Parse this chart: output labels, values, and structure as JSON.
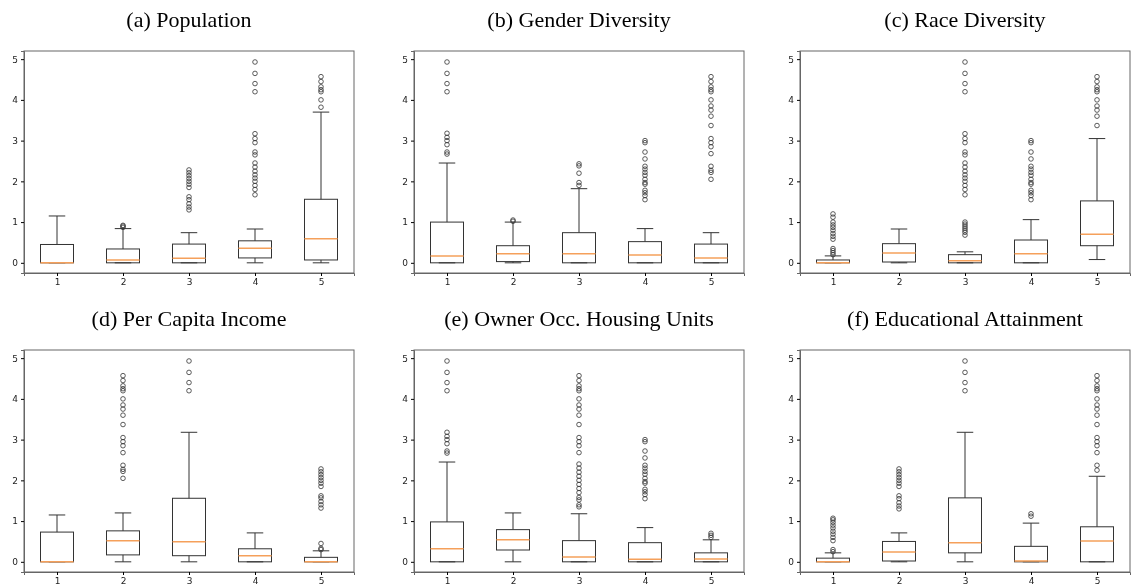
{
  "chart_data": [
    {
      "type": "box",
      "title": "(a) Population",
      "categories": [
        "1",
        "2",
        "3",
        "4",
        "5"
      ],
      "ylim": [
        -0.25,
        5.2
      ],
      "yticks": [
        0,
        1,
        2,
        3,
        4,
        5
      ],
      "boxes": [
        {
          "low": 0,
          "q1": 0,
          "median": 0,
          "q3": 0.45,
          "high": 1.15
        },
        {
          "low": 0,
          "q1": 0,
          "median": 0.07,
          "q3": 0.34,
          "high": 0.84,
          "outliers": [
            0.87,
            0.9,
            0.92
          ]
        },
        {
          "low": 0,
          "q1": 0,
          "median": 0.11,
          "q3": 0.46,
          "high": 0.74,
          "outliers": [
            1.3,
            1.37,
            1.45,
            1.55,
            1.62,
            1.85,
            1.93,
            2.0,
            2.07,
            2.14,
            2.21,
            2.28
          ]
        },
        {
          "low": 0,
          "q1": 0.12,
          "median": 0.36,
          "q3": 0.54,
          "high": 0.83,
          "outliers": [
            1.67,
            1.8,
            1.9,
            2.0,
            2.08,
            2.16,
            2.25,
            2.35,
            2.45,
            2.65,
            2.72,
            2.95,
            3.05,
            3.17,
            4.2,
            4.4,
            4.65,
            4.93
          ]
        },
        {
          "low": 0,
          "q1": 0.07,
          "median": 0.59,
          "q3": 1.56,
          "high": 3.7,
          "outliers": [
            3.82,
            4.0,
            4.2,
            4.25,
            4.32,
            4.45,
            4.57
          ]
        }
      ]
    },
    {
      "type": "box",
      "title": "(b) Gender Diversity",
      "categories": [
        "1",
        "2",
        "3",
        "4",
        "5"
      ],
      "ylim": [
        -0.25,
        5.2
      ],
      "yticks": [
        0,
        1,
        2,
        3,
        4,
        5
      ],
      "boxes": [
        {
          "low": 0,
          "q1": 0,
          "median": 0.17,
          "q3": 1.0,
          "high": 2.45,
          "outliers": [
            2.67,
            2.72,
            2.9,
            3.0,
            3.08,
            3.18,
            4.2,
            4.4,
            4.65,
            4.93
          ]
        },
        {
          "low": 0,
          "q1": 0.03,
          "median": 0.22,
          "q3": 0.42,
          "high": 1.0,
          "outliers": [
            1.02,
            1.05
          ]
        },
        {
          "low": 0,
          "q1": 0,
          "median": 0.22,
          "q3": 0.74,
          "high": 1.82,
          "outliers": [
            1.9,
            1.97,
            2.2,
            2.38,
            2.43
          ]
        },
        {
          "low": 0,
          "q1": 0,
          "median": 0.19,
          "q3": 0.52,
          "high": 0.84,
          "outliers": [
            1.55,
            1.65,
            1.72,
            1.78,
            1.93,
            1.97,
            2.05,
            2.15,
            2.22,
            2.3,
            2.37,
            2.55,
            2.72,
            2.95,
            3.0
          ]
        },
        {
          "low": 0,
          "q1": 0,
          "median": 0.12,
          "q3": 0.46,
          "high": 0.74,
          "outliers": [
            2.05,
            2.22,
            2.27,
            2.37,
            2.68,
            2.85,
            2.95,
            3.05,
            3.37,
            3.6,
            3.75,
            3.85,
            4.0,
            4.2,
            4.25,
            4.32,
            4.45,
            4.57
          ]
        }
      ]
    },
    {
      "type": "box",
      "title": "(c) Race Diversity",
      "categories": [
        "1",
        "2",
        "3",
        "4",
        "5"
      ],
      "ylim": [
        -0.25,
        5.2
      ],
      "yticks": [
        0,
        1,
        2,
        3,
        4,
        5
      ],
      "boxes": [
        {
          "low": 0,
          "q1": 0,
          "median": 0,
          "q3": 0.07,
          "high": 0.17,
          "outliers": [
            0.2,
            0.25,
            0.3,
            0.35,
            0.58,
            0.65,
            0.72,
            0.8,
            0.87,
            0.93,
            1.0,
            1.12,
            1.2
          ]
        },
        {
          "low": 0,
          "q1": 0.02,
          "median": 0.24,
          "q3": 0.47,
          "high": 0.83
        },
        {
          "low": 0,
          "q1": 0,
          "median": 0.05,
          "q3": 0.2,
          "high": 0.27,
          "outliers": [
            0.68,
            0.75,
            0.8,
            0.85,
            0.9,
            0.95,
            1.0,
            1.67,
            1.8,
            1.9,
            2.0,
            2.08,
            2.16,
            2.25,
            2.35,
            2.45,
            2.65,
            2.72,
            2.95,
            3.05,
            3.17,
            4.2,
            4.4,
            4.65,
            4.93
          ]
        },
        {
          "low": 0,
          "q1": 0,
          "median": 0.22,
          "q3": 0.56,
          "high": 1.06,
          "outliers": [
            1.55,
            1.65,
            1.72,
            1.78,
            1.93,
            1.97,
            2.05,
            2.15,
            2.22,
            2.3,
            2.37,
            2.55,
            2.72,
            2.95,
            3.0
          ]
        },
        {
          "low": 0.08,
          "q1": 0.42,
          "median": 0.7,
          "q3": 1.52,
          "high": 3.05,
          "outliers": [
            3.37,
            3.6,
            3.75,
            3.85,
            4.0,
            4.2,
            4.25,
            4.32,
            4.45,
            4.57
          ]
        }
      ]
    },
    {
      "type": "box",
      "title": "(d) Per Capita Income",
      "categories": [
        "1",
        "2",
        "3",
        "4",
        "5"
      ],
      "ylim": [
        -0.25,
        5.2
      ],
      "yticks": [
        0,
        1,
        2,
        3,
        4,
        5
      ],
      "boxes": [
        {
          "low": 0,
          "q1": 0,
          "median": 0,
          "q3": 0.73,
          "high": 1.15
        },
        {
          "low": 0,
          "q1": 0.17,
          "median": 0.52,
          "q3": 0.76,
          "high": 1.2,
          "outliers": [
            2.05,
            2.22,
            2.27,
            2.37,
            2.68,
            2.85,
            2.95,
            3.05,
            3.37,
            3.6,
            3.75,
            3.85,
            4.0,
            4.2,
            4.25,
            4.32,
            4.45,
            4.57
          ]
        },
        {
          "low": 0,
          "q1": 0.15,
          "median": 0.49,
          "q3": 1.56,
          "high": 3.18,
          "outliers": [
            4.2,
            4.4,
            4.65,
            4.93
          ]
        },
        {
          "low": 0,
          "q1": 0,
          "median": 0.15,
          "q3": 0.32,
          "high": 0.71
        },
        {
          "low": 0,
          "q1": 0,
          "median": 0,
          "q3": 0.11,
          "high": 0.27,
          "outliers": [
            0.3,
            0.33,
            0.45,
            1.32,
            1.4,
            1.48,
            1.57,
            1.62,
            1.85,
            1.93,
            2.0,
            2.07,
            2.14,
            2.21,
            2.28
          ]
        }
      ]
    },
    {
      "type": "box",
      "title": "(e) Owner Occ. Housing Units",
      "categories": [
        "1",
        "2",
        "3",
        "4",
        "5"
      ],
      "ylim": [
        -0.25,
        5.2
      ],
      "yticks": [
        0,
        1,
        2,
        3,
        4,
        5
      ],
      "boxes": [
        {
          "low": 0,
          "q1": 0,
          "median": 0.32,
          "q3": 0.98,
          "high": 2.45,
          "outliers": [
            2.67,
            2.72,
            2.9,
            3.0,
            3.08,
            3.18,
            4.2,
            4.4,
            4.65,
            4.93
          ]
        },
        {
          "low": 0,
          "q1": 0.29,
          "median": 0.54,
          "q3": 0.79,
          "high": 1.2
        },
        {
          "low": 0,
          "q1": 0,
          "median": 0.12,
          "q3": 0.52,
          "high": 1.18,
          "outliers": [
            1.35,
            1.4,
            1.52,
            1.58,
            1.7,
            1.8,
            1.9,
            2.0,
            2.1,
            2.2,
            2.3,
            2.4,
            2.68,
            2.85,
            2.95,
            3.05,
            3.37,
            3.6,
            3.75,
            3.85,
            4.0,
            4.2,
            4.25,
            4.32,
            4.45,
            4.57
          ]
        },
        {
          "low": 0,
          "q1": 0,
          "median": 0.06,
          "q3": 0.47,
          "high": 0.84,
          "outliers": [
            1.55,
            1.65,
            1.72,
            1.78,
            1.93,
            1.97,
            2.05,
            2.15,
            2.22,
            2.3,
            2.37,
            2.55,
            2.72,
            2.95,
            3.0
          ]
        },
        {
          "low": 0,
          "q1": 0,
          "median": 0.07,
          "q3": 0.22,
          "high": 0.54,
          "outliers": [
            0.6,
            0.65,
            0.7
          ]
        }
      ]
    },
    {
      "type": "box",
      "title": "(f) Educational Attainment",
      "categories": [
        "1",
        "2",
        "3",
        "4",
        "5"
      ],
      "ylim": [
        -0.25,
        5.2
      ],
      "yticks": [
        0,
        1,
        2,
        3,
        4,
        5
      ],
      "boxes": [
        {
          "low": 0,
          "q1": 0,
          "median": 0,
          "q3": 0.09,
          "high": 0.22,
          "outliers": [
            0.25,
            0.3,
            0.52,
            0.6,
            0.68,
            0.75,
            0.83,
            0.9,
            0.97,
            1.03,
            1.07
          ]
        },
        {
          "low": 0,
          "q1": 0.02,
          "median": 0.24,
          "q3": 0.5,
          "high": 0.71,
          "outliers": [
            1.3,
            1.37,
            1.45,
            1.55,
            1.62,
            1.85,
            1.93,
            2.0,
            2.07,
            2.14,
            2.21,
            2.28
          ]
        },
        {
          "low": 0,
          "q1": 0.22,
          "median": 0.47,
          "q3": 1.57,
          "high": 3.18,
          "outliers": [
            4.2,
            4.4,
            4.65,
            4.93
          ]
        },
        {
          "low": 0,
          "q1": 0,
          "median": 0.02,
          "q3": 0.38,
          "high": 0.95,
          "outliers": [
            1.12,
            1.18
          ]
        },
        {
          "low": 0,
          "q1": 0,
          "median": 0.51,
          "q3": 0.86,
          "high": 2.1,
          "outliers": [
            2.25,
            2.37,
            2.68,
            2.85,
            2.95,
            3.05,
            3.37,
            3.6,
            3.75,
            3.85,
            4.0,
            4.2,
            4.25,
            4.32,
            4.45,
            4.57
          ]
        }
      ]
    }
  ]
}
